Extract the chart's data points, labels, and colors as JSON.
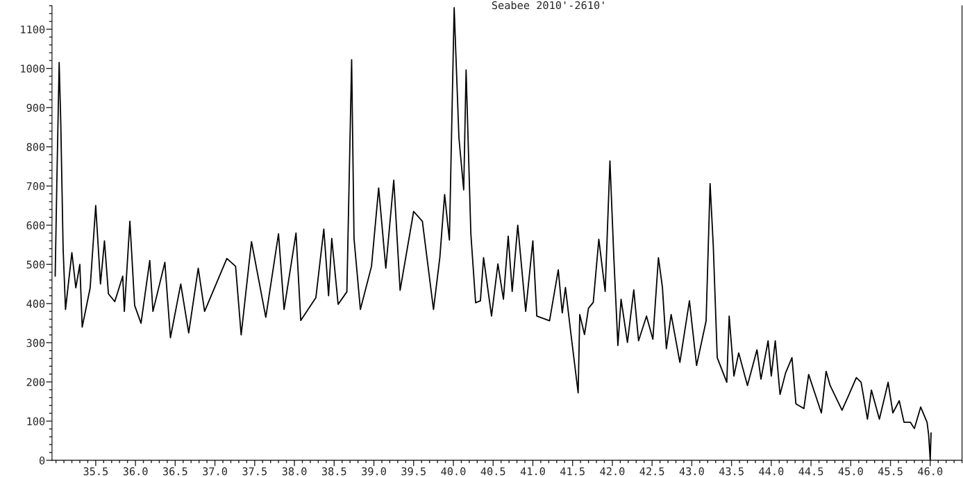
{
  "chart_data": {
    "type": "line",
    "title": "Seabee 2010'-2610'",
    "x": [
      34.99,
      35.01,
      35.04,
      35.06,
      35.09,
      35.12,
      35.2,
      35.25,
      35.3,
      35.33,
      35.43,
      35.5,
      35.56,
      35.61,
      35.66,
      35.74,
      35.84,
      35.86,
      35.93,
      35.99,
      36.07,
      36.18,
      36.22,
      36.37,
      36.44,
      36.57,
      36.67,
      36.79,
      36.87,
      37.15,
      37.26,
      37.33,
      37.46,
      37.64,
      37.8,
      37.87,
      38.02,
      38.08,
      38.27,
      38.37,
      38.43,
      38.47,
      38.55,
      38.66,
      38.72,
      38.75,
      38.83,
      38.97,
      39.06,
      39.15,
      39.25,
      39.33,
      39.5,
      39.61,
      39.75,
      39.83,
      39.89,
      39.95,
      40.01,
      40.07,
      40.13,
      40.16,
      40.22,
      40.28,
      40.34,
      40.38,
      40.48,
      40.56,
      40.63,
      40.69,
      40.74,
      40.81,
      40.91,
      41.0,
      41.05,
      41.21,
      41.32,
      41.37,
      41.41,
      41.48,
      41.57,
      41.59,
      41.65,
      41.7,
      41.76,
      41.83,
      41.91,
      41.97,
      42.02,
      42.07,
      42.11,
      42.19,
      42.27,
      42.33,
      42.43,
      42.51,
      42.58,
      42.63,
      42.68,
      42.74,
      42.85,
      42.97,
      43.06,
      43.18,
      43.23,
      43.27,
      43.32,
      43.44,
      43.47,
      43.53,
      43.59,
      43.7,
      43.82,
      43.87,
      43.96,
      44.0,
      44.05,
      44.11,
      44.18,
      44.26,
      44.31,
      44.41,
      44.47,
      44.56,
      44.63,
      44.69,
      44.74,
      44.89,
      44.97,
      45.07,
      45.13,
      45.21,
      45.26,
      45.36,
      45.47,
      45.53,
      45.61,
      45.67,
      45.75,
      45.8,
      45.88,
      45.96,
      45.98,
      46.0,
      46.01
    ],
    "series": [
      {
        "color": "#000000",
        "values": [
          470,
          700,
          1015,
          865,
          540,
          385,
          530,
          440,
          500,
          340,
          440,
          650,
          450,
          560,
          425,
          405,
          470,
          380,
          610,
          395,
          350,
          510,
          380,
          505,
          313,
          450,
          325,
          490,
          380,
          515,
          495,
          320,
          558,
          365,
          578,
          385,
          580,
          357,
          415,
          590,
          420,
          566,
          398,
          430,
          1022,
          566,
          385,
          495,
          695,
          490,
          715,
          434,
          635,
          610,
          385,
          518,
          678,
          562,
          1155,
          823,
          690,
          996,
          578,
          402,
          407,
          517,
          368,
          501,
          411,
          572,
          431,
          600,
          380,
          560,
          368,
          356,
          486,
          376,
          441,
          321,
          172,
          372,
          321,
          388,
          403,
          564,
          431,
          764,
          513,
          293,
          411,
          301,
          435,
          305,
          368,
          309,
          517,
          442,
          285,
          372,
          250,
          407,
          242,
          356,
          706,
          548,
          262,
          199,
          368,
          215,
          274,
          191,
          282,
          207,
          305,
          215,
          305,
          168,
          223,
          262,
          144,
          132,
          219,
          164,
          121,
          227,
          191,
          128,
          164,
          211,
          199,
          105,
          179,
          105,
          199,
          121,
          152,
          97,
          97,
          81,
          136,
          97,
          65,
          0,
          70
        ]
      }
    ],
    "xlim": [
      34.95,
      46.4
    ],
    "xticks": [
      35.5,
      {
        "value": 36,
        "label": "36.0"
      },
      36.5,
      {
        "value": 37,
        "label": "37.0"
      },
      37.5,
      {
        "value": 38,
        "label": "38.0"
      },
      38.5,
      {
        "value": 39,
        "label": "39.0"
      },
      39.5,
      {
        "value": 40,
        "label": "40.0"
      },
      40.5,
      {
        "value": 41,
        "label": "41.0"
      },
      41.5,
      {
        "value": 42,
        "label": "42.0"
      },
      42.5,
      {
        "value": 43,
        "label": "43.0"
      },
      43.5,
      {
        "value": 44,
        "label": "44.0"
      },
      44.5,
      {
        "value": 45,
        "label": "45.0"
      },
      45.5,
      {
        "value": 46,
        "label": "46.0"
      }
    ],
    "ylim": [
      0,
      1160
    ],
    "yticks": [
      0,
      100,
      200,
      300,
      400,
      500,
      600,
      700,
      800,
      900,
      1000,
      1100
    ],
    "grid": false,
    "legend": false,
    "marker": "none",
    "line_style": "solid"
  }
}
